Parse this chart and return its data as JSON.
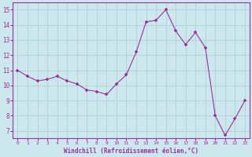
{
  "x": [
    0,
    1,
    2,
    3,
    4,
    5,
    6,
    7,
    8,
    9,
    10,
    11,
    12,
    13,
    14,
    15,
    16,
    17,
    18,
    19,
    20,
    21,
    22,
    23
  ],
  "y": [
    11.0,
    10.6,
    10.3,
    10.4,
    10.6,
    10.3,
    10.1,
    9.7,
    9.6,
    9.4,
    10.1,
    10.7,
    12.2,
    14.2,
    14.3,
    15.0,
    13.6,
    12.7,
    13.5,
    12.5,
    8.0,
    6.7,
    7.8,
    9.0
  ],
  "line_color": "#993399",
  "marker": "+",
  "xlabel": "Windchill (Refroidissement éolien,°C)",
  "ylabel_ticks": [
    7,
    8,
    9,
    10,
    11,
    12,
    13,
    14,
    15
  ],
  "xlim": [
    -0.5,
    23.5
  ],
  "ylim": [
    6.5,
    15.5
  ],
  "bg_color": "#cce8ee",
  "grid_color": "#aacccc",
  "xlabel_color": "#993399",
  "tick_color": "#993399",
  "font_family": "monospace",
  "xtick_labels": [
    "0",
    "1",
    "2",
    "3",
    "4",
    "5",
    "6",
    "7",
    "8",
    "9",
    "10",
    "11",
    "12",
    "13",
    "14",
    "15",
    "16",
    "17",
    "18",
    "19",
    "20",
    "21",
    "22",
    "23"
  ]
}
